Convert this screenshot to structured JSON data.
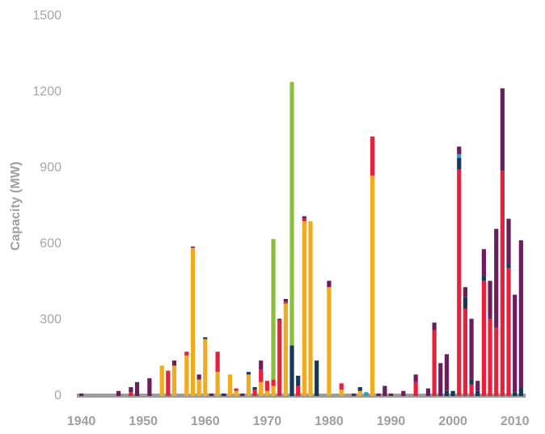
{
  "chart_data": {
    "type": "stacked-bar",
    "y_label": "Capacity (MW)",
    "x": [
      1940,
      1941,
      1942,
      1943,
      1944,
      1945,
      1946,
      1947,
      1948,
      1949,
      1950,
      1951,
      1952,
      1953,
      1954,
      1955,
      1956,
      1957,
      1958,
      1959,
      1960,
      1961,
      1962,
      1963,
      1964,
      1965,
      1966,
      1967,
      1968,
      1969,
      1970,
      1971,
      1972,
      1973,
      1974,
      1975,
      1976,
      1977,
      1978,
      1979,
      1980,
      1981,
      1982,
      1983,
      1984,
      1985,
      1986,
      1987,
      1988,
      1989,
      1990,
      1991,
      1992,
      1993,
      1994,
      1995,
      1996,
      1997,
      1998,
      1999,
      2000,
      2001,
      2002,
      2003,
      2004,
      2005,
      2006,
      2007,
      2008,
      2009,
      2010,
      2011
    ],
    "series": [
      {
        "color": "#f0ab1e",
        "values": [
          0,
          0,
          0,
          0,
          0,
          0,
          0,
          0,
          0,
          0,
          0,
          0,
          0,
          120,
          0,
          120,
          0,
          160,
          585,
          65,
          225,
          0,
          95,
          0,
          85,
          20,
          0,
          85,
          0,
          55,
          20,
          40,
          0,
          365,
          0,
          0,
          690,
          690,
          0,
          0,
          430,
          0,
          25,
          0,
          0,
          20,
          0,
          870,
          0,
          0,
          0,
          0,
          0,
          0,
          0,
          0,
          0,
          0,
          0,
          0,
          0,
          0,
          0,
          0,
          0,
          0,
          0,
          0,
          0,
          0,
          0,
          0
        ]
      },
      {
        "color": "#e8203c",
        "values": [
          0,
          0,
          0,
          0,
          0,
          0,
          0,
          0,
          15,
          0,
          0,
          0,
          0,
          0,
          100,
          0,
          0,
          15,
          0,
          0,
          0,
          0,
          80,
          0,
          0,
          10,
          0,
          0,
          25,
          50,
          40,
          25,
          300,
          10,
          0,
          40,
          10,
          0,
          0,
          0,
          0,
          0,
          25,
          0,
          0,
          0,
          0,
          155,
          0,
          0,
          0,
          0,
          0,
          0,
          55,
          0,
          0,
          260,
          0,
          0,
          0,
          895,
          345,
          45,
          0,
          455,
          305,
          270,
          890,
          505,
          0,
          0
        ]
      },
      {
        "color": "#16385a",
        "values": [
          0,
          0,
          0,
          0,
          0,
          0,
          0,
          0,
          0,
          0,
          0,
          0,
          0,
          0,
          0,
          0,
          0,
          0,
          0,
          0,
          7,
          0,
          0,
          10,
          0,
          0,
          0,
          10,
          10,
          0,
          0,
          0,
          5,
          8,
          200,
          40,
          0,
          0,
          140,
          0,
          0,
          0,
          0,
          0,
          0,
          15,
          0,
          0,
          0,
          0,
          0,
          0,
          0,
          0,
          0,
          0,
          0,
          0,
          0,
          20,
          20,
          45,
          45,
          20,
          20,
          20,
          5,
          0,
          0,
          15,
          15,
          35
        ]
      },
      {
        "color": "#2a9fc0",
        "values": [
          0,
          0,
          0,
          0,
          0,
          0,
          0,
          0,
          0,
          0,
          0,
          0,
          0,
          0,
          0,
          0,
          0,
          0,
          0,
          0,
          0,
          0,
          0,
          0,
          0,
          0,
          0,
          0,
          0,
          0,
          0,
          0,
          0,
          0,
          0,
          0,
          0,
          0,
          0,
          0,
          0,
          0,
          0,
          0,
          0,
          0,
          15,
          0,
          0,
          0,
          0,
          0,
          0,
          0,
          0,
          0,
          0,
          0,
          0,
          0,
          0,
          15,
          0,
          0,
          0,
          0,
          0,
          0,
          0,
          0,
          0,
          0
        ]
      },
      {
        "color": "#6e1d5c",
        "values": [
          10,
          0,
          0,
          0,
          0,
          0,
          20,
          0,
          20,
          55,
          0,
          70,
          0,
          0,
          0,
          20,
          0,
          0,
          5,
          20,
          0,
          10,
          0,
          0,
          0,
          0,
          10,
          0,
          0,
          35,
          0,
          0,
          0,
          0,
          0,
          0,
          10,
          0,
          0,
          0,
          25,
          0,
          0,
          0,
          10,
          0,
          0,
          0,
          10,
          40,
          10,
          0,
          20,
          0,
          30,
          0,
          30,
          30,
          130,
          145,
          0,
          30,
          40,
          240,
          40,
          105,
          145,
          390,
          325,
          180,
          385,
          580
        ]
      },
      {
        "color": "#8cbd3c",
        "values": [
          0,
          0,
          0,
          0,
          0,
          0,
          0,
          0,
          0,
          0,
          0,
          0,
          0,
          0,
          0,
          0,
          0,
          0,
          0,
          0,
          0,
          0,
          0,
          0,
          0,
          0,
          0,
          0,
          0,
          0,
          0,
          555,
          0,
          0,
          1040,
          0,
          0,
          0,
          0,
          0,
          0,
          0,
          0,
          0,
          0,
          0,
          0,
          0,
          0,
          0,
          0,
          0,
          0,
          0,
          0,
          0,
          0,
          0,
          0,
          0,
          0,
          0,
          0,
          0,
          0,
          0,
          0,
          0,
          0,
          0,
          0,
          0
        ]
      }
    ],
    "xlim": [
      1939,
      2012
    ],
    "xticks": [
      1940,
      1950,
      1960,
      1970,
      1980,
      1990,
      2000,
      2010
    ],
    "ylim": [
      0,
      1500
    ],
    "yticks": [
      0,
      300,
      600,
      900,
      1200,
      1500
    ]
  }
}
